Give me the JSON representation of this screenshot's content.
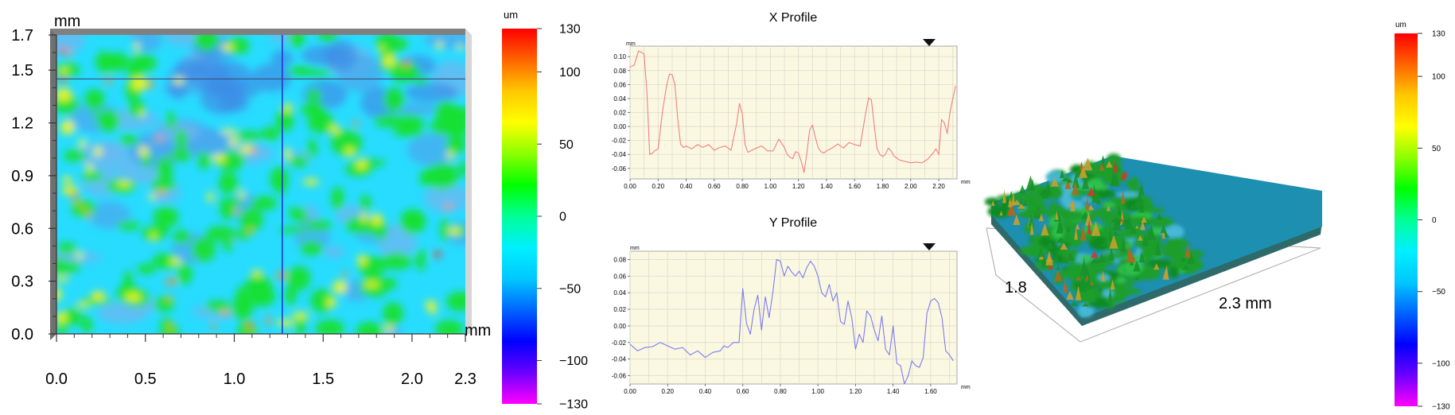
{
  "colors": {
    "jet": [
      "#ff00ff",
      "#6a00ff",
      "#0000ff",
      "#0064ff",
      "#00c8ff",
      "#00f0ff",
      "#00ff96",
      "#00ff00",
      "#8cff00",
      "#ffff00",
      "#ffc800",
      "#ff6400",
      "#ff0000"
    ],
    "profile_bg": "#fbf8e2",
    "x_line": "#ef8080",
    "y_line": "#7b7bf0",
    "grid": "#dedacb"
  },
  "chart_data": [
    {
      "type": "heatmap",
      "name": "height-map",
      "x_unit": "mm",
      "y_unit": "mm",
      "x_ticks": [
        "0.0",
        "0.5",
        "1.0",
        "1.5",
        "2.0",
        "2.3"
      ],
      "x_tick_values": [
        0,
        0.5,
        1.0,
        1.5,
        2.0,
        2.3
      ],
      "y_ticks": [
        "0.0",
        "0.3",
        "0.6",
        "0.9",
        "1.2",
        "1.5",
        "1.7"
      ],
      "y_tick_values": [
        0,
        0.3,
        0.6,
        0.9,
        1.2,
        1.5,
        1.7
      ],
      "xlim": [
        0,
        2.3
      ],
      "ylim": [
        0,
        1.7
      ],
      "cursor_x": 1.27,
      "cursor_y": 1.45
    },
    {
      "type": "colorbar",
      "name": "height-colorbar-left",
      "unit": "um",
      "ticks": [
        "130",
        "100",
        "50",
        "0",
        "−50",
        "−100",
        "−130"
      ],
      "tick_values": [
        130,
        100,
        50,
        0,
        -50,
        -100,
        -130
      ],
      "range": [
        -130,
        130
      ]
    },
    {
      "type": "line",
      "title": "X Profile",
      "x_unit": "mm",
      "y_unit": "mm",
      "x_ticks": [
        "0.00",
        "0.20",
        "0.40",
        "0.60",
        "0.80",
        "1.00",
        "1.20",
        "1.40",
        "1.60",
        "1.80",
        "2.00",
        "2.20"
      ],
      "y_ticks": [
        "0.10",
        "0.08",
        "0.06",
        "0.04",
        "0.02",
        "0.00",
        "-0.02",
        "-0.04",
        "-0.06"
      ],
      "xlim": [
        0,
        2.33
      ],
      "ylim": [
        -0.075,
        0.115
      ],
      "x": [
        0.0,
        0.03,
        0.06,
        0.08,
        0.1,
        0.12,
        0.14,
        0.16,
        0.18,
        0.2,
        0.23,
        0.26,
        0.28,
        0.3,
        0.32,
        0.34,
        0.36,
        0.38,
        0.4,
        0.44,
        0.48,
        0.52,
        0.56,
        0.6,
        0.64,
        0.68,
        0.72,
        0.76,
        0.78,
        0.8,
        0.82,
        0.84,
        0.86,
        0.9,
        0.94,
        0.98,
        1.02,
        1.06,
        1.1,
        1.12,
        1.14,
        1.16,
        1.18,
        1.2,
        1.22,
        1.24,
        1.26,
        1.28,
        1.3,
        1.32,
        1.34,
        1.36,
        1.38,
        1.4,
        1.44,
        1.48,
        1.52,
        1.56,
        1.6,
        1.64,
        1.68,
        1.7,
        1.72,
        1.74,
        1.76,
        1.78,
        1.8,
        1.82,
        1.84,
        1.86,
        1.88,
        1.92,
        1.96,
        2.0,
        2.04,
        2.08,
        2.12,
        2.16,
        2.18,
        2.2,
        2.22,
        2.24,
        2.26,
        2.28,
        2.3,
        2.32
      ],
      "values": [
        0.085,
        0.088,
        0.108,
        0.106,
        0.104,
        0.05,
        -0.04,
        -0.038,
        -0.034,
        -0.032,
        0.02,
        0.058,
        0.075,
        0.074,
        0.06,
        0.01,
        -0.025,
        -0.03,
        -0.028,
        -0.032,
        -0.026,
        -0.03,
        -0.026,
        -0.034,
        -0.03,
        -0.028,
        -0.034,
        0.005,
        0.033,
        0.018,
        -0.026,
        -0.037,
        -0.035,
        -0.031,
        -0.028,
        -0.035,
        -0.035,
        -0.018,
        -0.03,
        -0.04,
        -0.044,
        -0.046,
        -0.036,
        -0.038,
        -0.05,
        -0.066,
        -0.038,
        -0.005,
        0.002,
        -0.015,
        -0.03,
        -0.036,
        -0.038,
        -0.035,
        -0.031,
        -0.025,
        -0.031,
        -0.023,
        -0.026,
        -0.028,
        0.02,
        0.041,
        0.038,
        0.002,
        -0.032,
        -0.04,
        -0.043,
        -0.04,
        -0.031,
        -0.035,
        -0.042,
        -0.048,
        -0.05,
        -0.052,
        -0.051,
        -0.052,
        -0.047,
        -0.038,
        -0.032,
        -0.04,
        0.01,
        0.005,
        -0.01,
        0.02,
        0.04,
        0.058
      ]
    },
    {
      "type": "line",
      "title": "Y Profile",
      "x_unit": "mm",
      "y_unit": "mm",
      "x_ticks": [
        "0.00",
        "0.20",
        "0.40",
        "0.60",
        "0.80",
        "1.00",
        "1.20",
        "1.40",
        "1.60"
      ],
      "y_ticks": [
        "0.08",
        "0.06",
        "0.04",
        "0.02",
        "0.00",
        "-0.02",
        "-0.04",
        "-0.06"
      ],
      "xlim": [
        0,
        1.74
      ],
      "ylim": [
        -0.07,
        0.09
      ],
      "x": [
        0.0,
        0.04,
        0.08,
        0.12,
        0.16,
        0.2,
        0.24,
        0.28,
        0.32,
        0.36,
        0.4,
        0.44,
        0.48,
        0.5,
        0.52,
        0.55,
        0.58,
        0.6,
        0.62,
        0.64,
        0.66,
        0.68,
        0.7,
        0.72,
        0.74,
        0.76,
        0.78,
        0.8,
        0.82,
        0.84,
        0.86,
        0.88,
        0.9,
        0.92,
        0.94,
        0.96,
        0.98,
        1.0,
        1.02,
        1.04,
        1.06,
        1.08,
        1.1,
        1.12,
        1.14,
        1.16,
        1.18,
        1.2,
        1.22,
        1.24,
        1.26,
        1.28,
        1.3,
        1.32,
        1.34,
        1.36,
        1.38,
        1.4,
        1.42,
        1.44,
        1.46,
        1.48,
        1.5,
        1.52,
        1.54,
        1.56,
        1.58,
        1.6,
        1.62,
        1.64,
        1.66,
        1.68,
        1.7,
        1.72
      ],
      "values": [
        -0.022,
        -0.03,
        -0.026,
        -0.025,
        -0.02,
        -0.024,
        -0.028,
        -0.026,
        -0.035,
        -0.03,
        -0.038,
        -0.032,
        -0.03,
        -0.024,
        -0.026,
        -0.02,
        -0.02,
        0.045,
        0.003,
        -0.01,
        0.02,
        0.037,
        -0.005,
        0.035,
        0.01,
        0.04,
        0.08,
        0.078,
        0.06,
        0.072,
        0.065,
        0.06,
        0.066,
        0.058,
        0.07,
        0.078,
        0.072,
        0.06,
        0.04,
        0.035,
        0.05,
        0.03,
        0.04,
        0.005,
        0.002,
        0.03,
        0.01,
        -0.028,
        -0.01,
        -0.02,
        0.018,
        0.012,
        -0.005,
        -0.018,
        0.012,
        -0.028,
        -0.035,
        0.0,
        -0.045,
        -0.048,
        -0.07,
        -0.06,
        -0.042,
        -0.048,
        -0.05,
        -0.038,
        0.015,
        0.03,
        0.033,
        0.028,
        0.01,
        -0.03,
        -0.035,
        -0.042
      ]
    },
    {
      "type": "surface3d",
      "name": "surface-3d-view",
      "x_label": "2.3 mm",
      "y_label": "1.8"
    },
    {
      "type": "colorbar",
      "name": "height-colorbar-right",
      "unit": "um",
      "ticks": [
        "130",
        "100",
        "50",
        "0",
        "−50",
        "−100",
        "−130"
      ],
      "tick_values": [
        130,
        100,
        50,
        0,
        -50,
        -100,
        -130
      ],
      "range": [
        -130,
        130
      ]
    }
  ]
}
